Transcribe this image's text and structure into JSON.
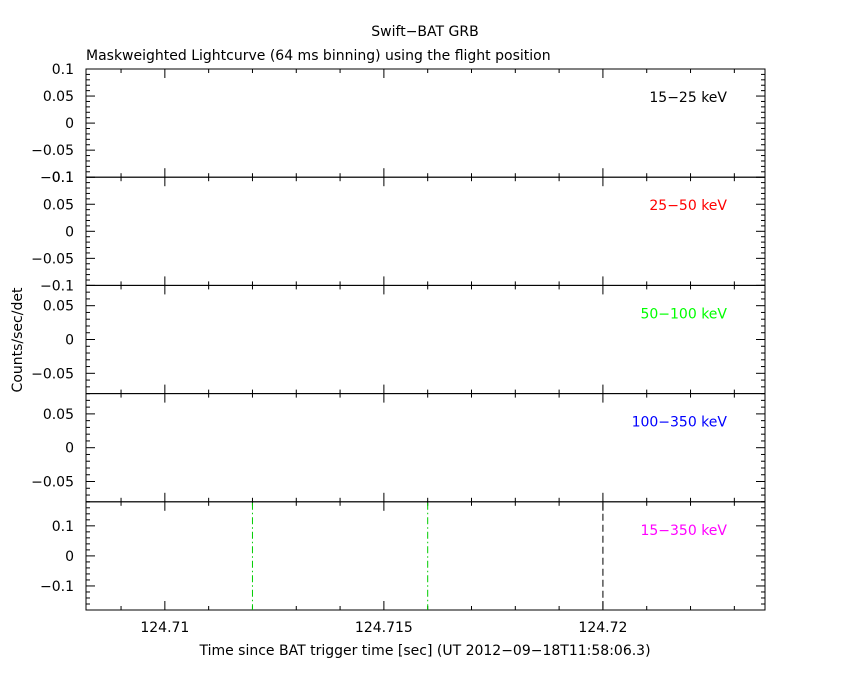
{
  "chart_data": {
    "type": "line",
    "title": "Swift−BAT GRB",
    "subtitle": "Maskweighted Lightcurve (64 ms binning) using the flight position",
    "xlabel": "Time since BAT trigger time [sec] (UT 2012−09−18T11:58:06.3)",
    "ylabel": "Counts/sec/det",
    "xlim": [
      124.7082,
      124.7237
    ],
    "x_tick_labels": [
      "124.71",
      "124.715",
      "124.72"
    ],
    "x_major_ticks": [
      124.71,
      124.715,
      124.72
    ],
    "x_minor_step": 0.001,
    "panels": [
      {
        "band": "15−25 keV",
        "color": "#000000",
        "ylim": [
          -0.1,
          0.1
        ],
        "y_ticks": [
          -0.1,
          -0.05,
          0,
          0.05,
          0.1
        ],
        "y_tick_labels": [
          "−0.1",
          "−0.05",
          "0",
          "0.05",
          "0.1"
        ],
        "y_minor_step": 0.01
      },
      {
        "band": "25−50 keV",
        "color": "#ff0000",
        "ylim": [
          -0.1,
          0.1
        ],
        "y_ticks": [
          -0.1,
          -0.05,
          0,
          0.05,
          0.1
        ],
        "y_tick_labels": [
          "−0.1",
          "−0.05",
          "0",
          "0.05",
          "0.1"
        ],
        "y_minor_step": 0.01
      },
      {
        "band": "50−100 keV",
        "color": "#00ff00",
        "ylim": [
          -0.08,
          0.08
        ],
        "y_ticks": [
          -0.05,
          0,
          0.05
        ],
        "y_tick_labels": [
          "−0.05",
          "0",
          "0.05"
        ],
        "y_minor_step": 0.01
      },
      {
        "band": "100−350 keV",
        "color": "#0000ff",
        "ylim": [
          -0.08,
          0.08
        ],
        "y_ticks": [
          -0.05,
          0,
          0.05
        ],
        "y_tick_labels": [
          "−0.05",
          "0",
          "0.05"
        ],
        "y_minor_step": 0.01
      },
      {
        "band": "15−350 keV",
        "color": "#ff00ff",
        "ylim": [
          -0.18,
          0.18
        ],
        "y_ticks": [
          -0.1,
          0,
          0.1
        ],
        "y_tick_labels": [
          "−0.1",
          "0",
          "0.1"
        ],
        "y_minor_step": 0.02
      }
    ],
    "markers": [
      {
        "x": 124.712,
        "color": "#00cc00",
        "style": "dash-dot",
        "panel": 4
      },
      {
        "x": 124.716,
        "color": "#00cc00",
        "style": "dash-dot",
        "panel": 4
      },
      {
        "x": 124.72,
        "color": "#000000",
        "style": "dashed",
        "panel": 4
      }
    ]
  }
}
